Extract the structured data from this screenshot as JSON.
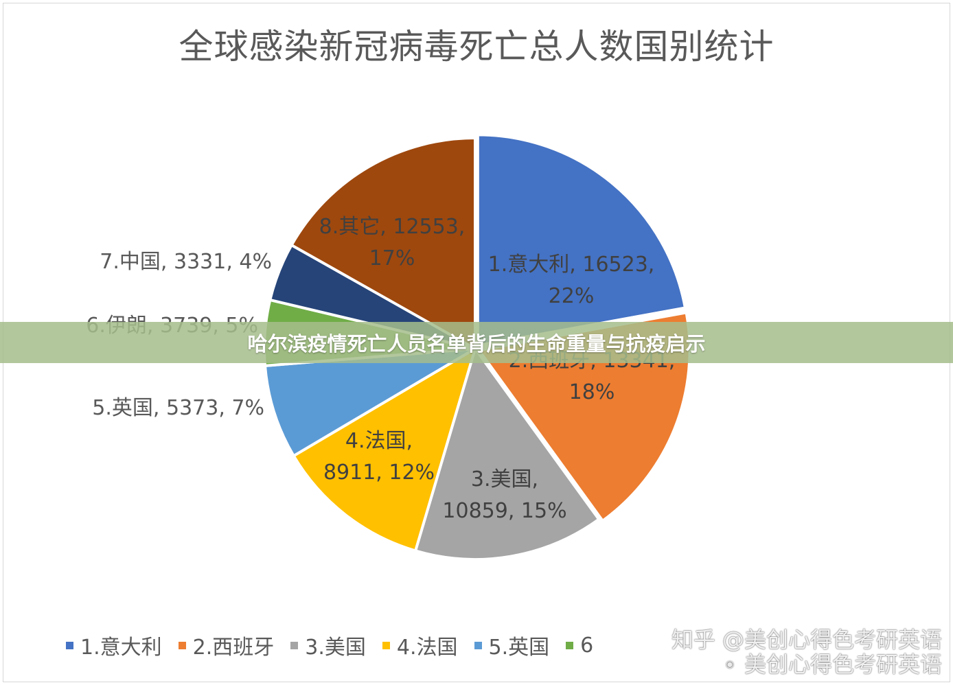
{
  "banner": {
    "text": "哈尔滨疫情死亡人员名单背后的生命重量与抗疫启示"
  },
  "watermark": {
    "line1": "知乎 @美创心得色考研英语",
    "line2": "美创心得色考研英语"
  },
  "chart_data": {
    "type": "pie",
    "title": "全球感染新冠病毒死亡总人数国别统计",
    "legend_position": "bottom",
    "slices": [
      {
        "name": "1.意大利",
        "value": 16523,
        "percent": "22%",
        "color": "#4472C4",
        "label_lines": [
          "1.意大利, 16523,",
          "22%"
        ]
      },
      {
        "name": "2.西班牙",
        "value": 13341,
        "percent": "18%",
        "color": "#ED7D31",
        "label_lines": [
          "2.西班牙, 13341,",
          "18%"
        ]
      },
      {
        "name": "3.美国",
        "value": 10859,
        "percent": "15%",
        "color": "#A5A5A5",
        "label_lines": [
          "3.美国,",
          "10859, 15%"
        ]
      },
      {
        "name": "4.法国",
        "value": 8911,
        "percent": "12%",
        "color": "#FFC000",
        "label_lines": [
          "4.法国,",
          "8911, 12%"
        ]
      },
      {
        "name": "5.英国",
        "value": 5373,
        "percent": "7%",
        "color": "#5B9BD5",
        "label_lines": [
          "5.英国, 5373, 7%"
        ]
      },
      {
        "name": "6.伊朗",
        "value": 3739,
        "percent": "5%",
        "color": "#70AD47",
        "label_lines": [
          "6.伊朗, 3739, 5%"
        ]
      },
      {
        "name": "7.中国",
        "value": 3331,
        "percent": "4%",
        "color": "#264478",
        "label_lines": [
          "7.中国, 3331, 4%"
        ]
      },
      {
        "name": "8.其它",
        "value": 12553,
        "percent": "17%",
        "color": "#9E480E",
        "label_lines": [
          "8.其它, 12553,",
          "17%"
        ]
      }
    ],
    "legend_visible": [
      "1.意大利",
      "2.西班牙",
      "3.美国",
      "4.法国",
      "5.英国",
      "6"
    ]
  }
}
